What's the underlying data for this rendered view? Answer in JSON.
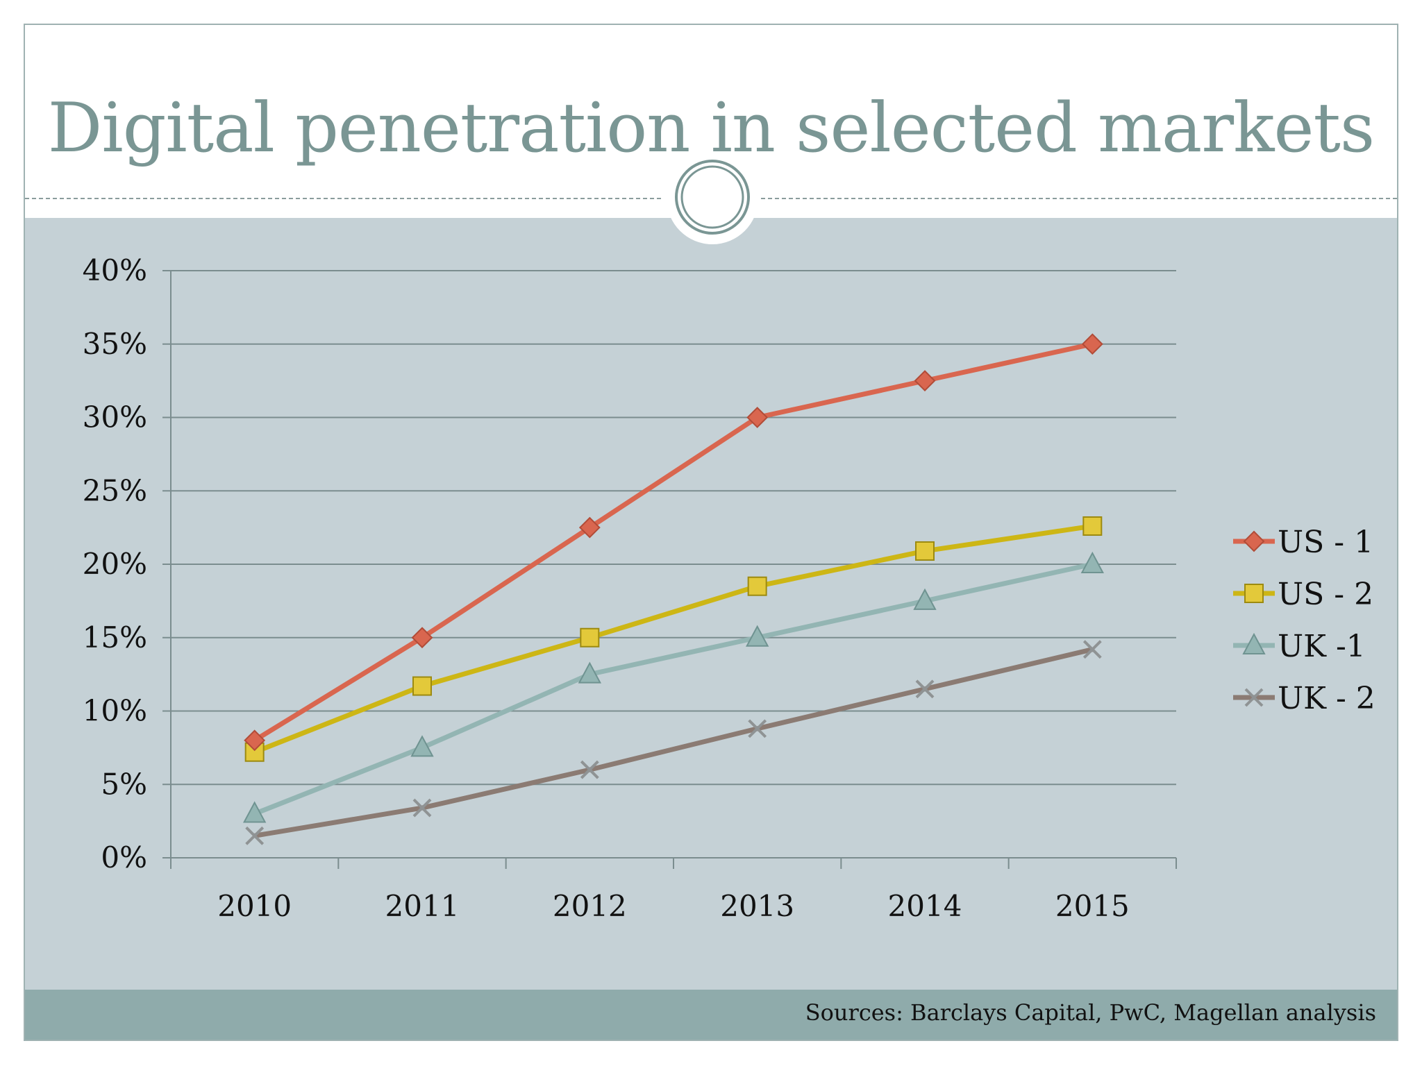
{
  "slide": {
    "title": "Digital penetration in selected markets",
    "sources": "Sources: Barclays Capital, PwC, Magellan analysis"
  },
  "colors": {
    "title": "#7a9694",
    "content_bg": "#c5d1d6",
    "footer_bg": "#8fabab",
    "grid": "#7b8d8f",
    "US - 1": "#d9664f",
    "US - 2": "#cdb615",
    "UK -1": "#93b5b3",
    "UK - 2": "#8b7b73"
  },
  "chart_data": {
    "type": "line",
    "x": [
      "2010",
      "2011",
      "2012",
      "2013",
      "2014",
      "2015"
    ],
    "y_ticks": [
      "0%",
      "5%",
      "10%",
      "15%",
      "20%",
      "25%",
      "30%",
      "35%",
      "40%"
    ],
    "ylim": [
      0,
      40
    ],
    "grid": true,
    "legend_position": "right",
    "series": [
      {
        "name": "US - 1",
        "marker": "diamond",
        "values": [
          8,
          15,
          22.5,
          30,
          32.5,
          35
        ]
      },
      {
        "name": "US - 2",
        "marker": "square",
        "values": [
          7.2,
          11.7,
          15,
          18.5,
          20.9,
          22.6
        ]
      },
      {
        "name": "UK -1",
        "marker": "triangle",
        "values": [
          3,
          7.5,
          12.5,
          15,
          17.5,
          20
        ]
      },
      {
        "name": "UK - 2",
        "marker": "x",
        "values": [
          1.5,
          3.4,
          6,
          8.8,
          11.5,
          14.2
        ]
      }
    ]
  }
}
